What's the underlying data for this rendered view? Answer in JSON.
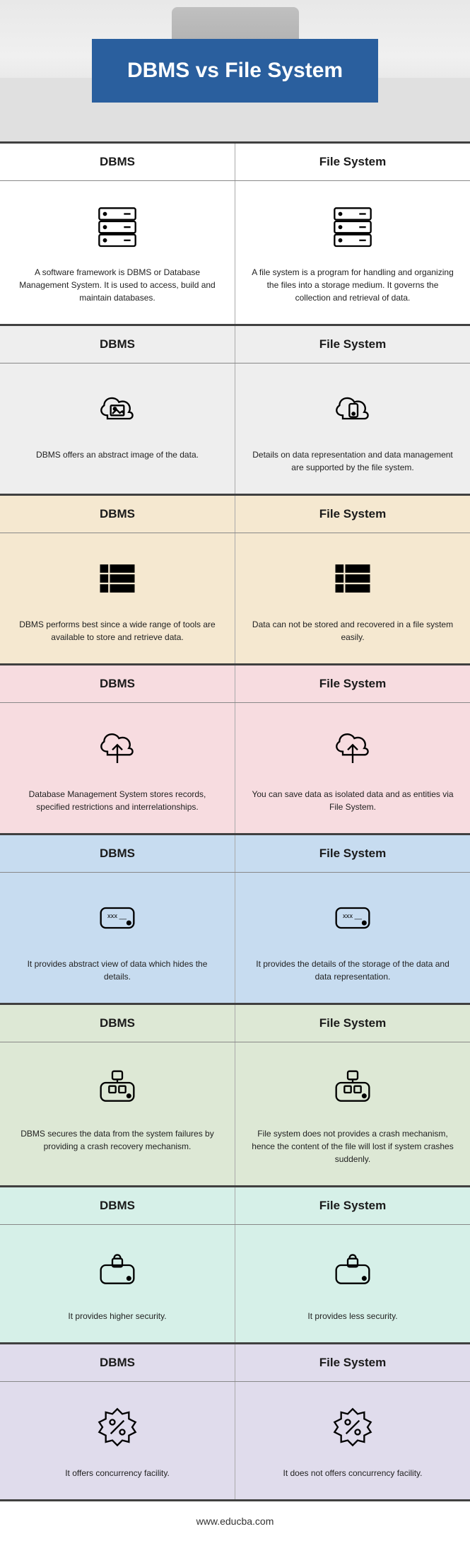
{
  "title": "DBMS vs File System",
  "footer": "www.educba.com",
  "labels": {
    "left": "DBMS",
    "right": "File System"
  },
  "rows": [
    {
      "header_bg": "#ffffff",
      "body_bg": "#ffffff",
      "icon": "server",
      "left": "A software framework is DBMS or Database Management System. It is used to access, build and maintain databases.",
      "right": "A file system is a program for handling and organizing the files into a storage medium. It governs the collection and retrieval of data."
    },
    {
      "header_bg": "#eeeeee",
      "body_bg": "#eeeeee",
      "icon": "cloud-image",
      "icon_right": "cloud-device",
      "left": "DBMS offers an abstract image of the data.",
      "right": "Details on data representation and data management are supported by the file system."
    },
    {
      "header_bg": "#f5e8d0",
      "body_bg": "#f5e8d0",
      "icon": "list",
      "left": "DBMS performs best since a wide range of tools are available to store and retrieve data.",
      "right": "Data can not be stored and recovered in a file system easily."
    },
    {
      "header_bg": "#f7dce0",
      "body_bg": "#f7dce0",
      "icon": "cloud-up",
      "left": "Database Management System stores records, specified restrictions and interrelationships.",
      "right": "You can save data as isolated data and as entities via File System."
    },
    {
      "header_bg": "#c7dcf0",
      "body_bg": "#c7dcf0",
      "icon": "disk",
      "left": "It provides abstract view of data which hides the details.",
      "right": "It provides the details of the storage of the data and data representation."
    },
    {
      "header_bg": "#dde8d5",
      "body_bg": "#dde8d5",
      "icon": "disk-net",
      "left": "DBMS secures the data from the system failures by providing a crash recovery mechanism.",
      "right": "File system does not provides a crash mechanism, hence the content of the file will lost if system crashes suddenly."
    },
    {
      "header_bg": "#d6f0e8",
      "body_bg": "#d6f0e8",
      "icon": "disk-lock",
      "left": "It provides higher security.",
      "right": "It provides less security."
    },
    {
      "header_bg": "#e0dcec",
      "body_bg": "#e0dcec",
      "icon": "percent-badge",
      "left": "It offers concurrency facility.",
      "right": "It does not offers concurrency facility."
    }
  ]
}
